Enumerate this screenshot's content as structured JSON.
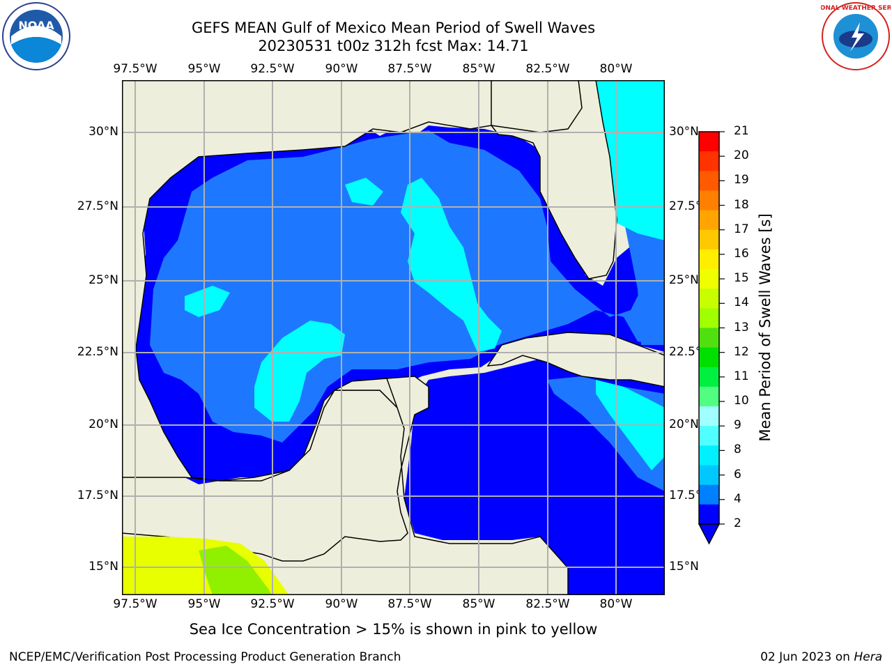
{
  "title_line1": "GEFS MEAN Gulf of Mexico Mean Period of Swell Waves",
  "title_line2": "20230531 t00z 312h fcst   Max: 14.71",
  "lon_labels": [
    "97.5°W",
    "95°W",
    "92.5°W",
    "90°W",
    "87.5°W",
    "85°W",
    "82.5°W",
    "80°W"
  ],
  "lat_labels": [
    "30°N",
    "27.5°N",
    "25°N",
    "22.5°N",
    "20°N",
    "17.5°N",
    "15°N"
  ],
  "colorbar": {
    "label": "Mean Period of Swell Waves [s]",
    "ticks": [
      "21",
      "20",
      "19",
      "18",
      "17",
      "16",
      "15",
      "14",
      "13",
      "12",
      "11",
      "10",
      "9",
      "8",
      "6",
      "4",
      "2"
    ],
    "colors": [
      "#ff0000",
      "#ff3300",
      "#ff5a00",
      "#ff8000",
      "#ffa400",
      "#ffc800",
      "#ffee00",
      "#f0ff00",
      "#c8ff00",
      "#a0ff00",
      "#50e010",
      "#00e000",
      "#00f040",
      "#50ff80",
      "#a0ffff",
      "#50ffff",
      "#00f0ff",
      "#00c8ff",
      "#0080ff",
      "#0000ff"
    ]
  },
  "note": "Sea Ice Concentration > 15% is shown in pink to yellow",
  "footer_left": "NCEP/EMC/Verification Post Processing Product Generation Branch",
  "footer_date": "02 Jun 2023 on",
  "footer_host": "Hera",
  "logos": {
    "left": "NOAA",
    "right": "NATIONAL WEATHER SERVICE"
  },
  "colors": {
    "land": "#eeeedc",
    "ocean_low": "#0000ff",
    "ocean_mid": "#1e78ff",
    "ocean_high": "#00ffff",
    "grid": "#b0b0b0"
  }
}
